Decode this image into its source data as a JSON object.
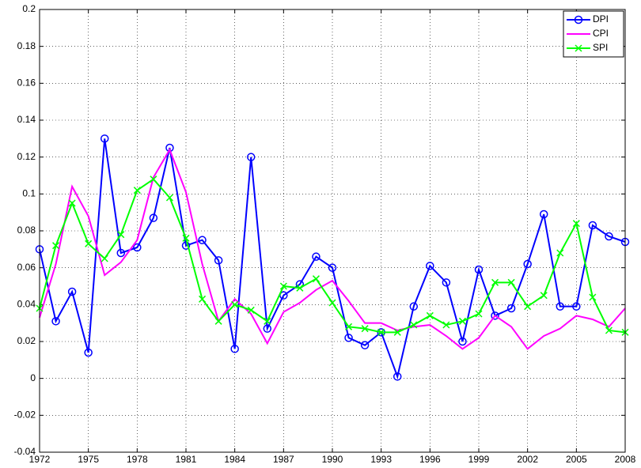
{
  "chart_data": {
    "type": "line",
    "x": [
      1972,
      1973,
      1974,
      1975,
      1976,
      1977,
      1978,
      1979,
      1980,
      1981,
      1982,
      1983,
      1984,
      1985,
      1986,
      1987,
      1988,
      1989,
      1990,
      1991,
      1992,
      1993,
      1994,
      1995,
      1996,
      1997,
      1998,
      1999,
      2000,
      2001,
      2002,
      2003,
      2004,
      2005,
      2006,
      2007,
      2008
    ],
    "series": [
      {
        "name": "DPI",
        "color": "#0000ff",
        "marker": "circle",
        "values": [
          0.07,
          0.031,
          0.047,
          0.014,
          0.13,
          0.068,
          0.071,
          0.087,
          0.125,
          0.072,
          0.075,
          0.064,
          0.016,
          0.12,
          0.027,
          0.045,
          0.051,
          0.066,
          0.06,
          0.022,
          0.018,
          0.025,
          0.001,
          0.039,
          0.061,
          0.052,
          0.02,
          0.059,
          0.034,
          0.038,
          0.062,
          0.089,
          0.039,
          0.039,
          0.083,
          0.077,
          0.074
        ]
      },
      {
        "name": "CPI",
        "color": "#ff00ff",
        "marker": "none",
        "values": [
          0.033,
          0.062,
          0.104,
          0.088,
          0.056,
          0.063,
          0.075,
          0.109,
          0.124,
          0.101,
          0.062,
          0.031,
          0.043,
          0.035,
          0.019,
          0.036,
          0.041,
          0.048,
          0.053,
          0.042,
          0.03,
          0.03,
          0.026,
          0.028,
          0.029,
          0.023,
          0.016,
          0.022,
          0.034,
          0.028,
          0.016,
          0.023,
          0.027,
          0.034,
          0.032,
          0.028,
          0.038
        ]
      },
      {
        "name": "SPI",
        "color": "#00ff00",
        "marker": "x",
        "values": [
          0.038,
          0.072,
          0.095,
          0.073,
          0.065,
          0.078,
          0.102,
          0.108,
          0.098,
          0.076,
          0.043,
          0.031,
          0.04,
          0.037,
          0.031,
          0.05,
          0.049,
          0.054,
          0.041,
          0.028,
          0.027,
          0.025,
          0.025,
          0.029,
          0.034,
          0.029,
          0.031,
          0.035,
          0.052,
          0.052,
          0.039,
          0.045,
          0.068,
          0.084,
          0.044,
          0.026,
          0.025
        ]
      }
    ],
    "xlim": [
      1972,
      2008
    ],
    "xticks": [
      1972,
      1975,
      1978,
      1981,
      1984,
      1987,
      1990,
      1993,
      1996,
      1999,
      2002,
      2005,
      2008
    ],
    "ylim": [
      -0.04,
      0.2
    ],
    "yticks": [
      -0.04,
      -0.02,
      0,
      0.02,
      0.04,
      0.06,
      0.08,
      0.1,
      0.12,
      0.14,
      0.16,
      0.18,
      0.2
    ],
    "grid": true,
    "legend": "northeast"
  }
}
